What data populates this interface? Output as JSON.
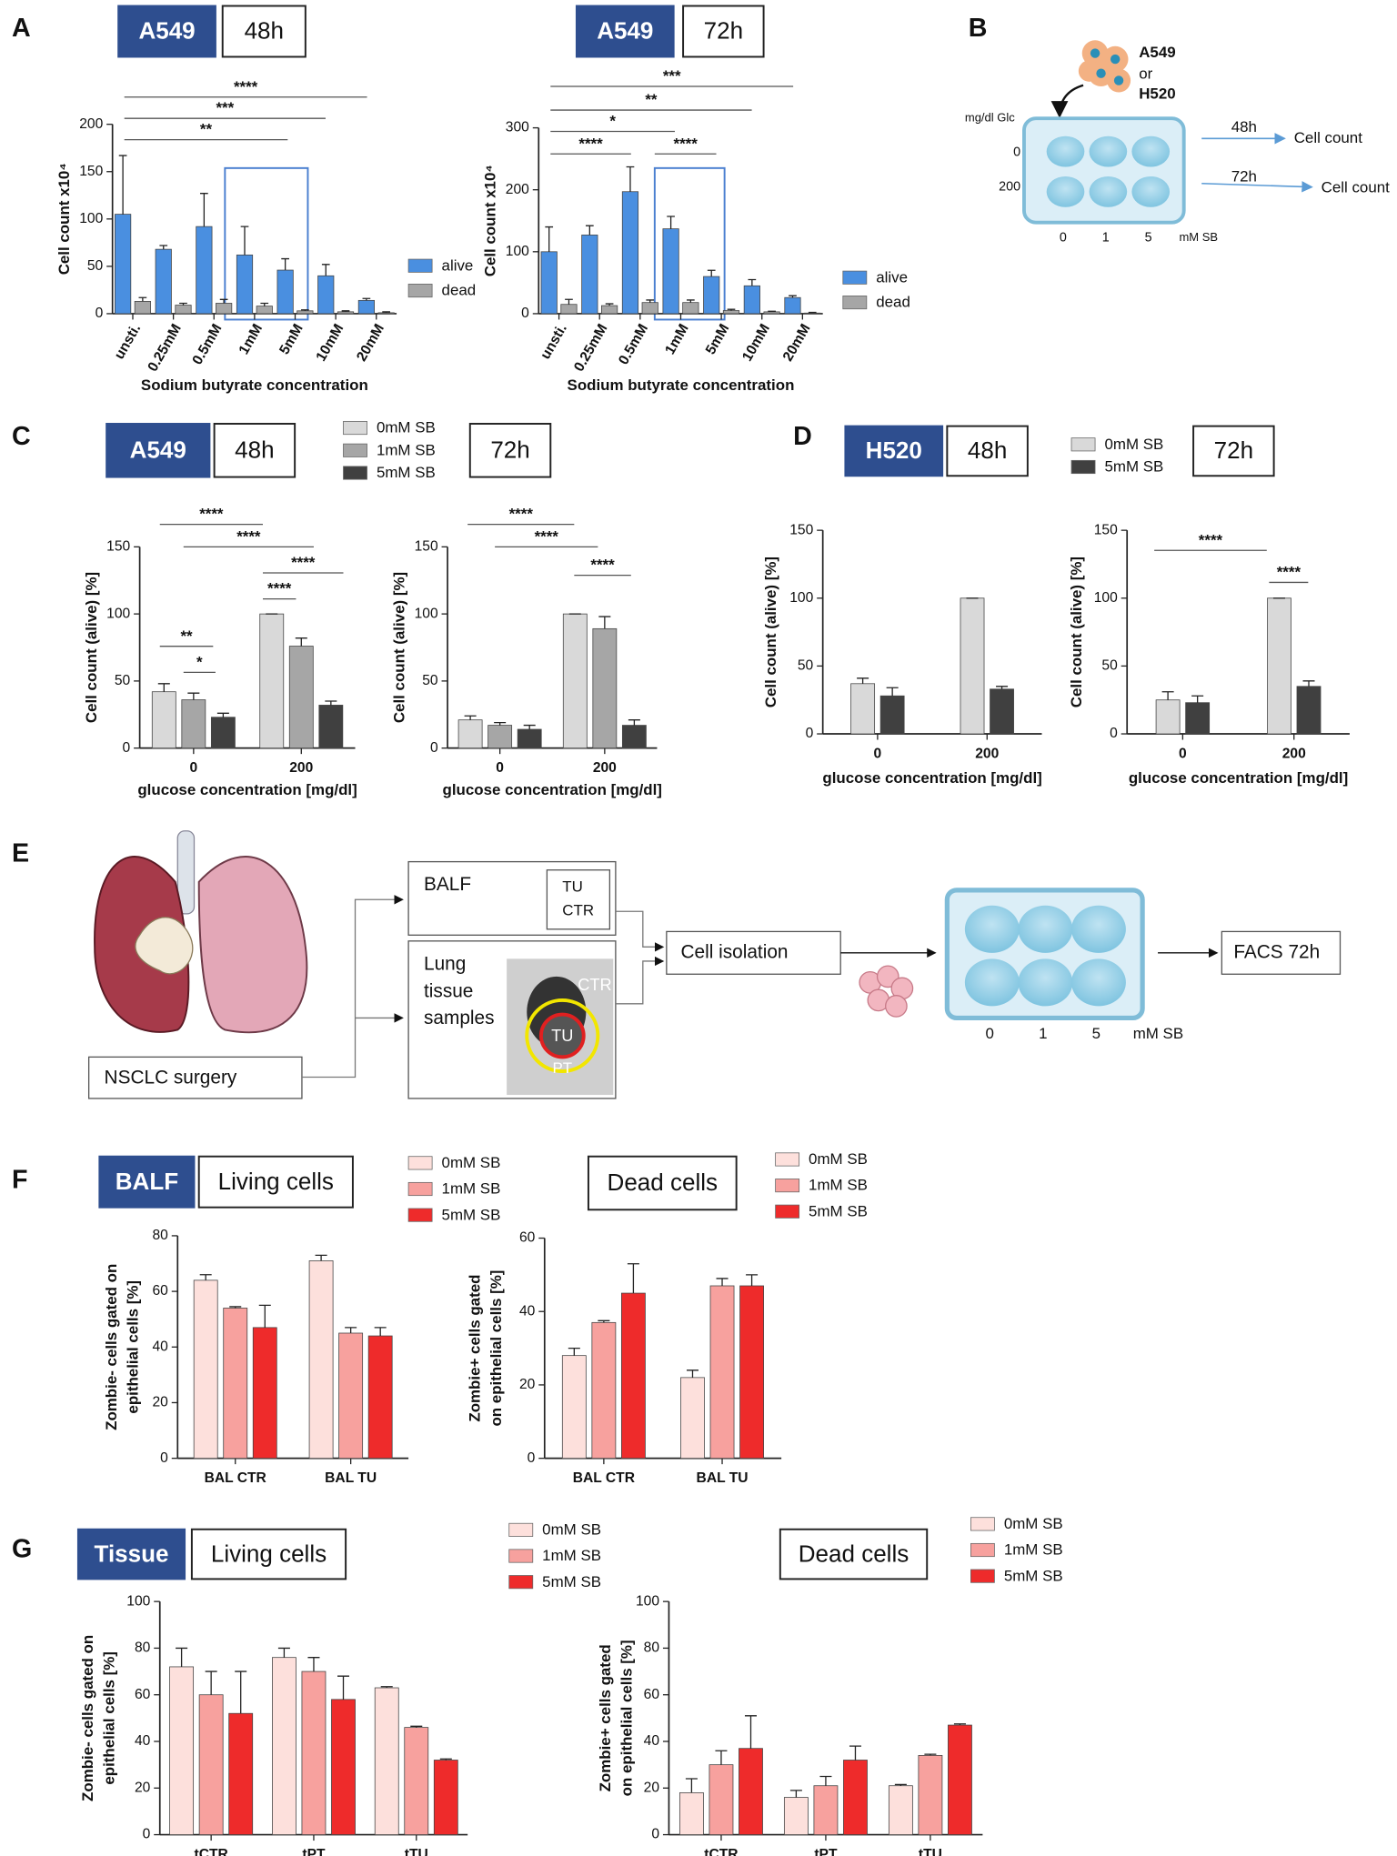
{
  "panel_labels": [
    "A",
    "B",
    "C",
    "D",
    "E",
    "F",
    "G"
  ],
  "chart_data": [
    {
      "type": "bar",
      "tags": [
        "A549",
        "48h"
      ],
      "ylabel": "Cell count x10⁴",
      "xlabel": "Sodium butyrate concentration",
      "categories": [
        "unsti.",
        "0.25mM",
        "0.5mM",
        "1mM",
        "5mM",
        "10mM",
        "20mM"
      ],
      "series": [
        {
          "name": "alive",
          "color": "#4a8fe0",
          "values": [
            105,
            68,
            92,
            62,
            46,
            40,
            14
          ],
          "errors": [
            62,
            4,
            35,
            30,
            12,
            12,
            2
          ]
        },
        {
          "name": "dead",
          "color": "#a6a6a6",
          "values": [
            13,
            9,
            11,
            8,
            3,
            2,
            1
          ],
          "errors": [
            4,
            2,
            4,
            3,
            1,
            1,
            1
          ]
        }
      ],
      "ylim": [
        0,
        200
      ],
      "yticks": [
        0,
        50,
        100,
        150,
        200
      ],
      "legend": true,
      "annotations": [
        "****",
        "***",
        "**"
      ]
    },
    {
      "type": "bar",
      "tags": [
        "A549",
        "72h"
      ],
      "ylabel": "Cell count x10⁴",
      "xlabel": "Sodium butyrate concentration",
      "categories": [
        "unsti.",
        "0.25mM",
        "0.5mM",
        "1mM",
        "5mM",
        "10mM",
        "20mM"
      ],
      "series": [
        {
          "name": "alive",
          "color": "#4a8fe0",
          "values": [
            100,
            127,
            197,
            137,
            60,
            45,
            26
          ],
          "errors": [
            40,
            15,
            40,
            20,
            10,
            10,
            3
          ]
        },
        {
          "name": "dead",
          "color": "#a6a6a6",
          "values": [
            15,
            13,
            18,
            18,
            5,
            3,
            1
          ],
          "errors": [
            8,
            3,
            4,
            4,
            2,
            1,
            1
          ]
        }
      ],
      "ylim": [
        0,
        300
      ],
      "yticks": [
        0,
        100,
        200,
        300
      ],
      "legend": true,
      "annotations": [
        "***",
        "**",
        "*",
        "****",
        "****"
      ]
    },
    {
      "type": "bar",
      "tags": [
        "A549",
        "48h"
      ],
      "ylabel": "Cell count (alive) [%]",
      "xlabel": "glucose concentration [mg/dl]",
      "categories": [
        "0",
        "200"
      ],
      "series": [
        {
          "name": "0mM SB",
          "color": "#d9d9d9",
          "values": [
            42,
            100
          ],
          "errors": [
            6,
            0
          ]
        },
        {
          "name": "1mM SB",
          "color": "#a6a6a6",
          "values": [
            36,
            76
          ],
          "errors": [
            5,
            6
          ]
        },
        {
          "name": "5mM SB",
          "color": "#404040",
          "values": [
            23,
            32
          ],
          "errors": [
            3,
            3
          ]
        }
      ],
      "ylim": [
        0,
        150
      ],
      "yticks": [
        0,
        50,
        100,
        150
      ],
      "legend": true,
      "annotations": [
        "****",
        "****",
        "****",
        "****",
        "**",
        "*"
      ]
    },
    {
      "type": "bar",
      "tags": [
        "72h"
      ],
      "ylabel": "Cell count (alive) [%]",
      "xlabel": "glucose concentration [mg/dl]",
      "categories": [
        "0",
        "200"
      ],
      "series": [
        {
          "name": "0mM SB",
          "color": "#d9d9d9",
          "values": [
            21,
            100
          ],
          "errors": [
            3,
            0
          ]
        },
        {
          "name": "1mM SB",
          "color": "#a6a6a6",
          "values": [
            17,
            89
          ],
          "errors": [
            2,
            9
          ]
        },
        {
          "name": "5mM SB",
          "color": "#404040",
          "values": [
            14,
            17
          ],
          "errors": [
            3,
            4
          ]
        }
      ],
      "ylim": [
        0,
        150
      ],
      "yticks": [
        0,
        50,
        100,
        150
      ],
      "legend": false,
      "annotations": [
        "****",
        "****",
        "****"
      ]
    },
    {
      "type": "bar",
      "tags": [
        "H520",
        "48h"
      ],
      "ylabel": "Cell count (alive) [%]",
      "xlabel": "glucose concentration [mg/dl]",
      "categories": [
        "0",
        "200"
      ],
      "series": [
        {
          "name": "0mM SB",
          "color": "#d9d9d9",
          "values": [
            37,
            100
          ],
          "errors": [
            4,
            0
          ]
        },
        {
          "name": "5mM SB",
          "color": "#404040",
          "values": [
            28,
            33
          ],
          "errors": [
            6,
            2
          ]
        }
      ],
      "ylim": [
        0,
        150
      ],
      "yticks": [
        0,
        50,
        100,
        150
      ],
      "legend": true,
      "annotations": []
    },
    {
      "type": "bar",
      "tags": [
        "72h"
      ],
      "ylabel": "Cell count (alive) [%]",
      "xlabel": "glucose concentration [mg/dl]",
      "categories": [
        "0",
        "200"
      ],
      "series": [
        {
          "name": "0mM SB",
          "color": "#d9d9d9",
          "values": [
            25,
            100
          ],
          "errors": [
            6,
            0
          ]
        },
        {
          "name": "5mM SB",
          "color": "#404040",
          "values": [
            23,
            35
          ],
          "errors": [
            5,
            4
          ]
        }
      ],
      "ylim": [
        0,
        150
      ],
      "yticks": [
        0,
        50,
        100,
        150
      ],
      "legend": false,
      "annotations": [
        "****",
        "****"
      ]
    },
    {
      "type": "bar",
      "tags": [
        "BALF",
        "Living cells"
      ],
      "ylabel": [
        "Zombie- cells gated on",
        "epithelial cells [%]"
      ],
      "categories": [
        "BAL CTR",
        "BAL TU"
      ],
      "series": [
        {
          "name": "0mM SB",
          "color": "#fde0dc",
          "values": [
            64,
            71
          ],
          "errors": [
            2,
            2
          ]
        },
        {
          "name": "1mM SB",
          "color": "#f7a19e",
          "values": [
            54,
            45
          ],
          "errors": [
            0.5,
            2
          ]
        },
        {
          "name": "5mM SB",
          "color": "#ee2b2b",
          "values": [
            47,
            44
          ],
          "errors": [
            8,
            3
          ]
        }
      ],
      "ylim": [
        0,
        80
      ],
      "yticks": [
        0,
        20,
        40,
        60,
        80
      ],
      "legend": true,
      "annotations": []
    },
    {
      "type": "bar",
      "tags": [
        "Dead cells"
      ],
      "ylabel": [
        "Zombie+ cells gated",
        "on epithelial cells [%]"
      ],
      "categories": [
        "BAL CTR",
        "BAL TU"
      ],
      "series": [
        {
          "name": "0mM SB",
          "color": "#fde0dc",
          "values": [
            28,
            22
          ],
          "errors": [
            2,
            2
          ]
        },
        {
          "name": "1mM SB",
          "color": "#f7a19e",
          "values": [
            37,
            47
          ],
          "errors": [
            0.5,
            2
          ]
        },
        {
          "name": "5mM SB",
          "color": "#ee2b2b",
          "values": [
            45,
            47
          ],
          "errors": [
            8,
            3
          ]
        }
      ],
      "ylim": [
        0,
        60
      ],
      "yticks": [
        0,
        20,
        40,
        60
      ],
      "legend": true,
      "annotations": []
    },
    {
      "type": "bar",
      "tags": [
        "Tissue",
        "Living cells"
      ],
      "ylabel": [
        "Zombie- cells gated on",
        "epithelial cells [%]"
      ],
      "categories": [
        "tCTR",
        "tPT",
        "tTU"
      ],
      "series": [
        {
          "name": "0mM SB",
          "color": "#fde0dc",
          "values": [
            72,
            76,
            63
          ],
          "errors": [
            8,
            4,
            0.5
          ]
        },
        {
          "name": "1mM SB",
          "color": "#f7a19e",
          "values": [
            60,
            70,
            46
          ],
          "errors": [
            10,
            6,
            0.5
          ]
        },
        {
          "name": "5mM SB",
          "color": "#ee2b2b",
          "values": [
            52,
            58,
            32
          ],
          "errors": [
            18,
            10,
            0.5
          ]
        }
      ],
      "ylim": [
        0,
        100
      ],
      "yticks": [
        0,
        20,
        40,
        60,
        80,
        100
      ],
      "legend": true,
      "annotations": []
    },
    {
      "type": "bar",
      "tags": [
        "Dead cells"
      ],
      "ylabel": [
        "Zombie+ cells gated",
        "on epithelial cells [%]"
      ],
      "categories": [
        "tCTR",
        "tPT",
        "tTU"
      ],
      "series": [
        {
          "name": "0mM SB",
          "color": "#fde0dc",
          "values": [
            18,
            16,
            21
          ],
          "errors": [
            6,
            3,
            0.5
          ]
        },
        {
          "name": "1mM SB",
          "color": "#f7a19e",
          "values": [
            30,
            21,
            34
          ],
          "errors": [
            6,
            4,
            0.5
          ]
        },
        {
          "name": "5mM SB",
          "color": "#ee2b2b",
          "values": [
            37,
            32,
            47
          ],
          "errors": [
            14,
            6,
            0.5
          ]
        }
      ],
      "ylim": [
        0,
        100
      ],
      "yticks": [
        0,
        20,
        40,
        60,
        80,
        100
      ],
      "legend": true,
      "annotations": []
    }
  ],
  "diagram_b": {
    "cells": [
      "A549",
      "or",
      "H520"
    ],
    "glc_label": "mg/dl Glc",
    "glc": [
      "0",
      "200"
    ],
    "sb": [
      "0",
      "1",
      "5"
    ],
    "sb_unit": "mM SB",
    "outputs": [
      {
        "time": "48h",
        "label": "Cell count"
      },
      {
        "time": "72h",
        "label": "Cell count"
      }
    ]
  },
  "diagram_e": {
    "surgery": "NSCLC surgery",
    "balf": "BALF",
    "balf_sub": [
      "TU",
      "CTR"
    ],
    "tissue": [
      "Lung",
      "tissue",
      "samples"
    ],
    "ct_labels": [
      "CTR",
      "TU",
      "PT"
    ],
    "isolation": "Cell isolation",
    "sb": [
      "0",
      "1",
      "5"
    ],
    "sb_unit": "mM SB",
    "facs": "FACS 72h"
  }
}
